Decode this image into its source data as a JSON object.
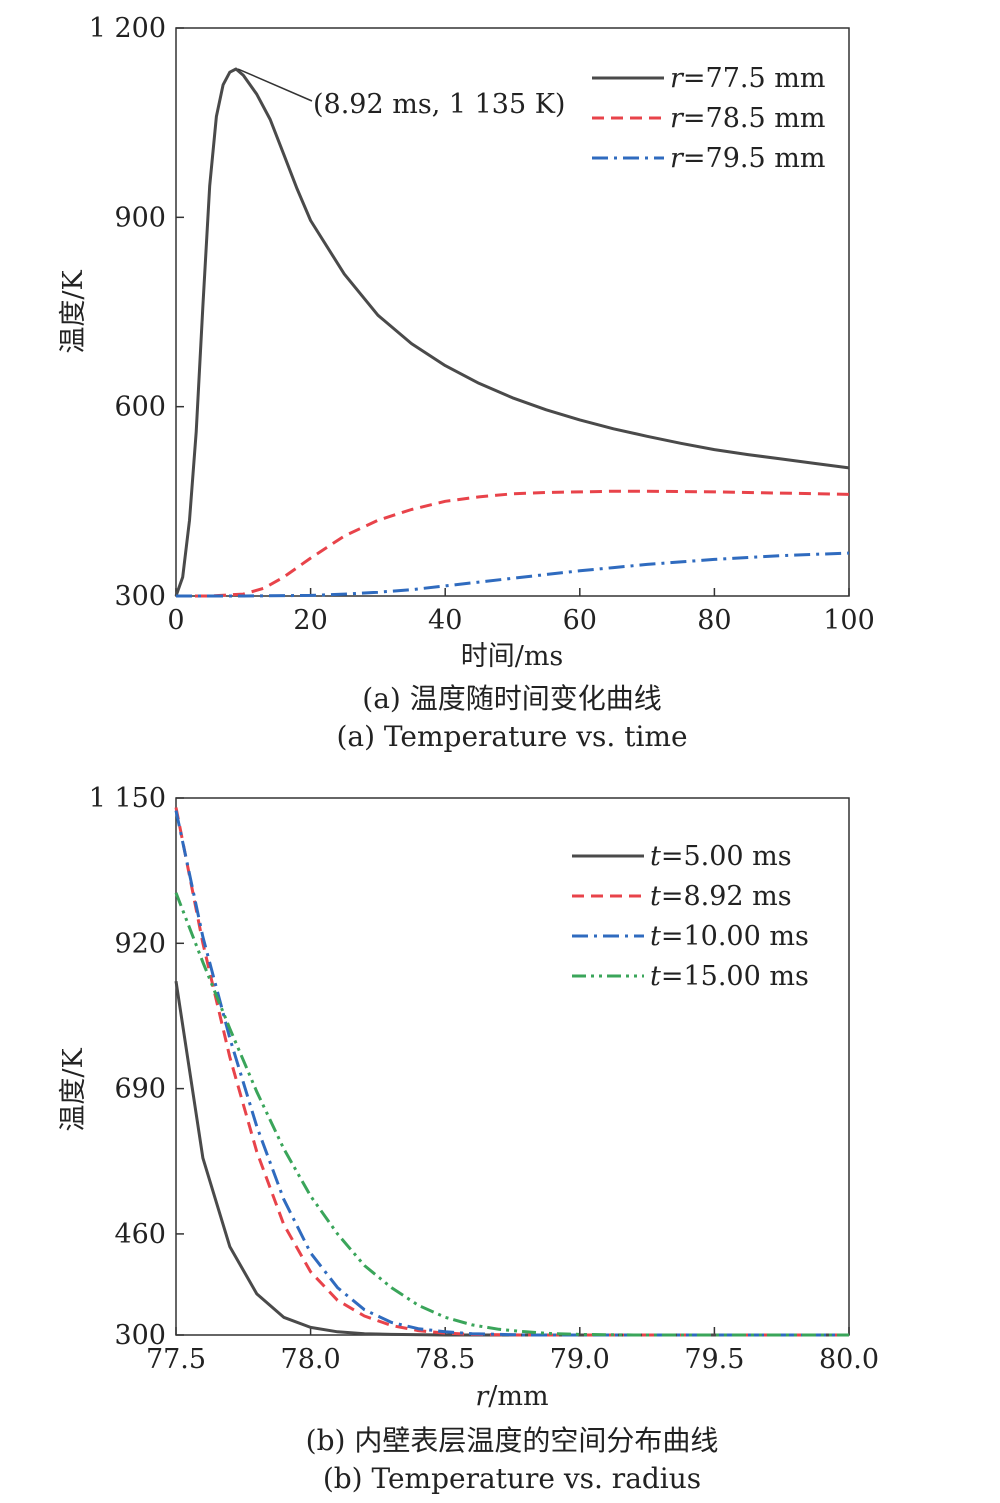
{
  "chart_data": [
    {
      "type": "line",
      "caption_cn": "(a) 温度随时间变化曲线",
      "caption_en": "(a) Temperature vs. time",
      "xlabel": "时间/ms",
      "ylabel": "温度/K",
      "xlim": [
        0,
        100
      ],
      "ylim": [
        300,
        1200
      ],
      "xticks": [
        0,
        20,
        40,
        60,
        80,
        100
      ],
      "xtick_labels": [
        "0",
        "20",
        "40",
        "60",
        "80",
        "100"
      ],
      "yticks": [
        300,
        600,
        900,
        1200
      ],
      "ytick_labels": [
        "300",
        "600",
        "900",
        "1 200"
      ],
      "grid": false,
      "legend_position": "top-right",
      "annotation": {
        "text": "(8.92 ms, 1 135 K)",
        "x": 8.92,
        "y": 1135
      },
      "series": [
        {
          "name": "r=77.5 mm",
          "var": "r",
          "rest": "=77.5 mm",
          "color": "#4a4a4a",
          "dash": "solid",
          "x": [
            0,
            1,
            2,
            3,
            4,
            5,
            6,
            7,
            8,
            8.92,
            10,
            12,
            14,
            16,
            18,
            20,
            25,
            30,
            35,
            40,
            45,
            50,
            55,
            60,
            65,
            70,
            75,
            80,
            85,
            90,
            95,
            100
          ],
          "y": [
            300,
            330,
            420,
            560,
            760,
            950,
            1060,
            1110,
            1130,
            1135,
            1125,
            1095,
            1055,
            1000,
            945,
            895,
            810,
            745,
            700,
            665,
            637,
            614,
            595,
            579,
            565,
            553,
            542,
            532,
            524,
            517,
            510,
            503
          ]
        },
        {
          "name": "r=78.5 mm",
          "var": "r",
          "rest": "=78.5 mm",
          "color": "#e8434a",
          "dash": "dashed",
          "x": [
            0,
            5,
            10,
            13,
            16,
            20,
            25,
            30,
            35,
            40,
            45,
            50,
            55,
            60,
            65,
            70,
            80,
            90,
            100
          ],
          "y": [
            300,
            300,
            303,
            312,
            330,
            360,
            395,
            420,
            437,
            450,
            457,
            462,
            464,
            465,
            466,
            466,
            465,
            463,
            461
          ]
        },
        {
          "name": "r=79.5 mm",
          "var": "r",
          "rest": "=79.5 mm",
          "color": "#2f6bbf",
          "dash": "dashdot",
          "x": [
            0,
            10,
            20,
            25,
            30,
            35,
            40,
            45,
            50,
            55,
            60,
            65,
            70,
            75,
            80,
            85,
            90,
            95,
            100
          ],
          "y": [
            300,
            300,
            301,
            303,
            306,
            310,
            316,
            322,
            328,
            334,
            340,
            345,
            350,
            354,
            358,
            361,
            364,
            366,
            368
          ]
        }
      ]
    },
    {
      "type": "line",
      "caption_cn": "(b) 内壁表层温度的空间分布曲线",
      "caption_en": "(b) Temperature vs. radius",
      "xlabel_var": "r",
      "xlabel_rest": "/mm",
      "ylabel": "温度/K",
      "xlim": [
        77.5,
        80.0
      ],
      "ylim": [
        300,
        1150
      ],
      "xticks": [
        77.5,
        78.0,
        78.5,
        79.0,
        79.5,
        80.0
      ],
      "xtick_labels": [
        "77.5",
        "78.0",
        "78.5",
        "79.0",
        "79.5",
        "80.0"
      ],
      "yticks": [
        300,
        460,
        690,
        920,
        1150
      ],
      "ytick_labels": [
        "300",
        "460",
        "690",
        "920",
        "1 150"
      ],
      "grid": false,
      "legend_position": "top-right",
      "series": [
        {
          "name": "t=5.00 ms",
          "var": "t",
          "rest": "=5.00 ms",
          "color": "#4a4a4a",
          "dash": "solid",
          "x": [
            77.5,
            77.6,
            77.7,
            77.8,
            77.9,
            78.0,
            78.1,
            78.2,
            78.3,
            78.5,
            79.0,
            80.0
          ],
          "y": [
            860,
            580,
            440,
            365,
            328,
            312,
            305,
            302,
            301,
            300,
            300,
            300
          ]
        },
        {
          "name": "t=8.92 ms",
          "var": "t",
          "rest": "=8.92 ms",
          "color": "#e8434a",
          "dash": "dashed",
          "x": [
            77.5,
            77.6,
            77.7,
            77.8,
            77.9,
            78.0,
            78.1,
            78.2,
            78.3,
            78.4,
            78.5,
            78.6,
            78.8,
            79.0,
            80.0
          ],
          "y": [
            1135,
            920,
            740,
            590,
            475,
            400,
            355,
            330,
            315,
            307,
            303,
            301,
            300,
            300,
            300
          ]
        },
        {
          "name": "t=10.00 ms",
          "var": "t",
          "rest": "=10.00 ms",
          "color": "#2f6bbf",
          "dash": "dashdot",
          "x": [
            77.5,
            77.6,
            77.7,
            77.8,
            77.9,
            78.0,
            78.1,
            78.2,
            78.3,
            78.4,
            78.5,
            78.6,
            78.8,
            79.0,
            80.0
          ],
          "y": [
            1130,
            930,
            770,
            630,
            515,
            430,
            375,
            340,
            320,
            310,
            305,
            302,
            300,
            300,
            300
          ]
        },
        {
          "name": "t=15.00 ms",
          "var": "t",
          "rest": "=15.00 ms",
          "color": "#3aa55a",
          "dash": "dashdotdot",
          "x": [
            77.5,
            77.6,
            77.7,
            77.8,
            77.9,
            78.0,
            78.1,
            78.2,
            78.3,
            78.4,
            78.5,
            78.6,
            78.7,
            78.8,
            78.9,
            79.0,
            79.2,
            79.5,
            80.0
          ],
          "y": [
            1000,
            890,
            785,
            685,
            595,
            520,
            460,
            410,
            375,
            347,
            328,
            316,
            309,
            305,
            302,
            301,
            300,
            300,
            300
          ]
        }
      ]
    }
  ]
}
